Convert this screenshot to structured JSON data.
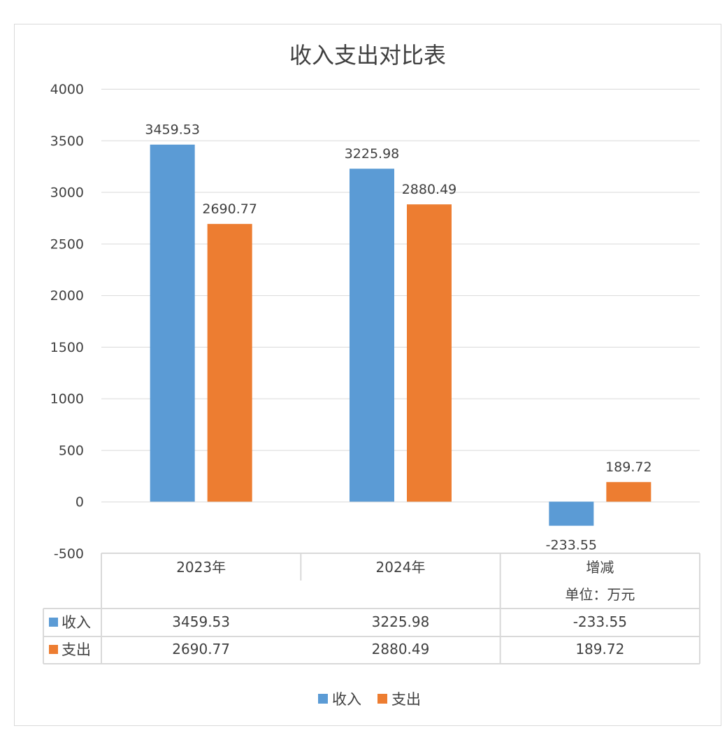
{
  "chart_data": {
    "type": "bar",
    "title": "收入支出对比表",
    "categories": [
      "2023年",
      "2024年",
      "增减"
    ],
    "category_sublabels": [
      "",
      "",
      "单位：万元"
    ],
    "series": [
      {
        "name": "收入",
        "color": "#5B9BD5",
        "values": [
          3459.53,
          3225.98,
          -233.55
        ],
        "labels": [
          "3459.53",
          "3225.98",
          "-233.55"
        ]
      },
      {
        "name": "支出",
        "color": "#ED7D31",
        "values": [
          2690.77,
          2880.49,
          189.72
        ],
        "labels": [
          "2690.77",
          "2880.49",
          "189.72"
        ]
      }
    ],
    "ylim": [
      -500,
      4000
    ],
    "yticks": [
      -500,
      0,
      500,
      1000,
      1500,
      2000,
      2500,
      3000,
      3500,
      4000
    ],
    "grid": true,
    "data_table": true,
    "legend_position": "bottom"
  }
}
